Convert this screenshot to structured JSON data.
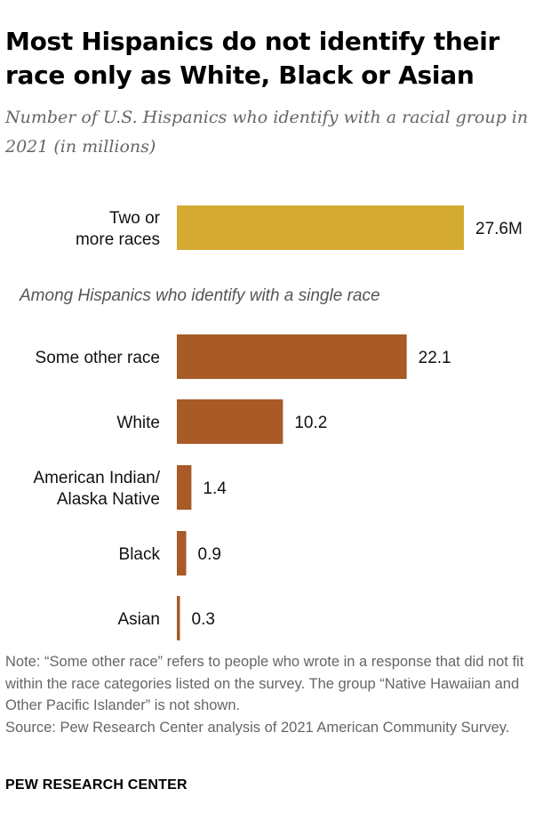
{
  "header": {
    "title": "Most Hispanics do not identify their race only as White, Black or Asian",
    "subtitle": "Number of U.S. Hispanics who identify with a racial group in 2021 (in millions)"
  },
  "colors": {
    "multiracial_bar": "#D4AA31",
    "single_race_bar": "#A85A27"
  },
  "chart_data": {
    "type": "bar",
    "orientation": "horizontal",
    "categories": [
      "Two or more races",
      "Some other race",
      "White",
      "American Indian/ Alaska Native",
      "Black",
      "Asian"
    ],
    "category_lines": [
      [
        "Two or",
        "more races"
      ],
      [
        "Some other race"
      ],
      [
        "White"
      ],
      [
        "American Indian/",
        "Alaska Native"
      ],
      [
        "Black"
      ],
      [
        "Asian"
      ]
    ],
    "values": [
      27.6,
      22.1,
      10.2,
      1.4,
      0.9,
      0.3
    ],
    "value_labels": [
      "27.6M",
      "22.1",
      "10.2",
      "1.4",
      "0.9",
      "0.3"
    ],
    "group_label": "Among Hispanics who identify with a single race",
    "xlim": [
      0,
      27.6
    ],
    "grid": false,
    "legend": "none"
  },
  "footer": {
    "note": "Note: “Some other race” refers to people who wrote in a response that did not fit within the race categories listed on the survey. The group “Native Hawaiian and Other Pacific Islander” is not shown.",
    "source": "Source: Pew Research Center analysis of 2021 American Community Survey.",
    "brand": "PEW RESEARCH CENTER"
  }
}
